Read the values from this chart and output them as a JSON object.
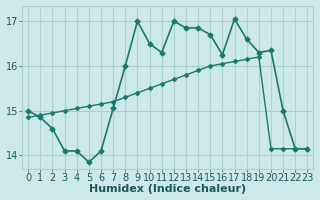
{
  "xlabel": "Humidex (Indice chaleur)",
  "ylabel": "",
  "bg_color": "#cce8e8",
  "line_color": "#1a7a6a",
  "grid_color": "#aad0d0",
  "xlim": [
    -0.5,
    23.5
  ],
  "ylim": [
    13.7,
    17.35
  ],
  "yticks": [
    14,
    15,
    16,
    17
  ],
  "xticks": [
    0,
    1,
    2,
    3,
    4,
    5,
    6,
    7,
    8,
    9,
    10,
    11,
    12,
    13,
    14,
    15,
    16,
    17,
    18,
    19,
    20,
    21,
    22,
    23
  ],
  "line1_x": [
    0,
    1,
    2,
    3,
    4,
    5,
    6,
    7,
    8,
    9,
    10,
    11,
    12,
    13,
    14,
    15,
    16,
    17,
    18,
    19,
    20,
    21,
    22,
    23
  ],
  "line1_y": [
    15.0,
    14.85,
    14.6,
    14.1,
    14.1,
    13.85,
    14.1,
    15.05,
    16.0,
    17.0,
    16.5,
    16.3,
    17.0,
    16.85,
    16.85,
    16.7,
    16.25,
    17.05,
    16.6,
    16.3,
    16.35,
    15.0,
    14.15,
    14.15
  ],
  "line2_x": [
    0,
    1,
    2,
    3,
    4,
    5,
    6,
    7,
    8,
    9,
    10,
    11,
    12,
    13,
    14,
    15,
    16,
    17,
    18,
    19,
    20,
    21,
    22,
    23
  ],
  "line2_y": [
    14.85,
    14.9,
    14.95,
    15.0,
    15.05,
    15.1,
    15.15,
    15.2,
    15.3,
    15.4,
    15.5,
    15.6,
    15.7,
    15.8,
    15.9,
    16.0,
    16.05,
    16.1,
    16.15,
    16.2,
    14.15,
    14.15,
    14.15,
    14.15
  ],
  "font_color": "#1a5a5a",
  "tick_fontsize": 7,
  "label_fontsize": 8
}
